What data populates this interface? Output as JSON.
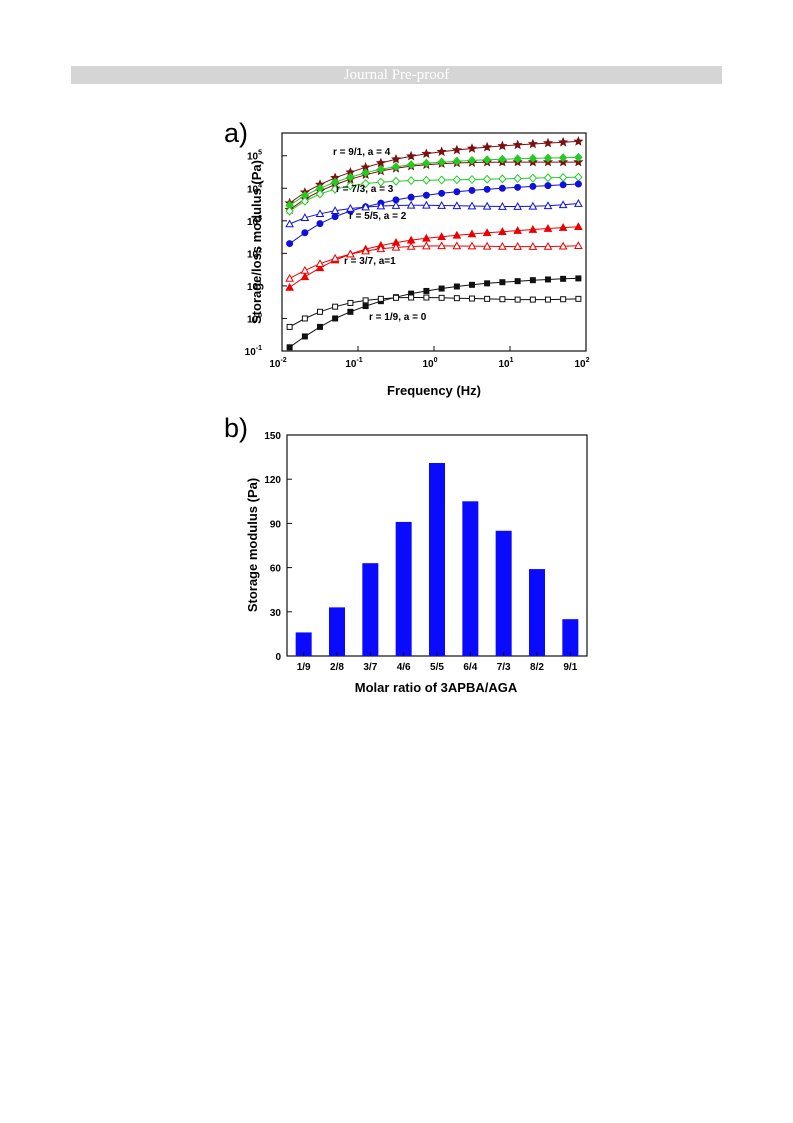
{
  "header": {
    "banner_text": "Journal Pre-proof"
  },
  "panels": {
    "a_label": "a)",
    "b_label": "b)"
  },
  "chart_data": [
    {
      "type": "scatter",
      "panel": "a",
      "xlabel": "Frequency (Hz)",
      "ylabel": "Storage/loss modulus (Pa)",
      "xscale": "log",
      "yscale": "log",
      "xlim": [
        0.01,
        100
      ],
      "ylim": [
        0.1,
        500000
      ],
      "xticks": [
        {
          "exp": "-2"
        },
        {
          "exp": "-1"
        },
        {
          "exp": "0"
        },
        {
          "exp": "1"
        },
        {
          "exp": "2"
        }
      ],
      "yticks": [
        {
          "exp": "-1"
        },
        {
          "exp": "0"
        },
        {
          "exp": "1"
        },
        {
          "exp": "2"
        },
        {
          "exp": "3"
        },
        {
          "exp": "4"
        },
        {
          "exp": "5"
        }
      ],
      "x": [
        0.0126,
        0.02,
        0.0316,
        0.05,
        0.0794,
        0.126,
        0.2,
        0.316,
        0.5,
        0.794,
        1.26,
        2,
        3.16,
        5,
        7.94,
        12.6,
        20,
        31.6,
        50,
        79.4
      ],
      "series": [
        {
          "marker": "star",
          "fill": true,
          "color": "#7a1010",
          "values": [
            3500,
            7500,
            13000,
            21000,
            31000,
            44000,
            60000,
            78000,
            97000,
            115000,
            133000,
            150000,
            167000,
            184000,
            200000,
            215000,
            230000,
            245000,
            260000,
            275000
          ]
        },
        {
          "marker": "star",
          "fill": true,
          "color": "#7a1010",
          "values": [
            2200,
            4700,
            8200,
            13000,
            19000,
            26000,
            34000,
            41000,
            48000,
            53000,
            57000,
            60000,
            62000,
            63000,
            63500,
            64000,
            64000,
            64000,
            64000,
            64000
          ]
        },
        {
          "marker": "diamond",
          "fill": true,
          "color": "#22cc22",
          "values": [
            3000,
            6000,
            10000,
            15500,
            22000,
            30000,
            38500,
            46000,
            53000,
            59000,
            64000,
            68000,
            72000,
            75000,
            78000,
            80500,
            83000,
            85000,
            87000,
            89000
          ]
        },
        {
          "marker": "diamond",
          "fill": false,
          "color": "#22cc22",
          "values": [
            2000,
            4000,
            6700,
            9400,
            12000,
            14000,
            15500,
            16500,
            17200,
            17700,
            18000,
            18300,
            18600,
            19000,
            19500,
            20000,
            20500,
            21000,
            21500,
            22000
          ]
        },
        {
          "marker": "circle",
          "fill": true,
          "color": "#1010dd",
          "values": [
            200,
            430,
            820,
            1350,
            2000,
            2700,
            3500,
            4400,
            5300,
            6100,
            7000,
            7800,
            8600,
            9300,
            10000,
            10700,
            11400,
            12100,
            12800,
            13500
          ]
        },
        {
          "marker": "triangle",
          "fill": false,
          "color": "#1010dd",
          "values": [
            800,
            1250,
            1650,
            2050,
            2400,
            2650,
            2850,
            2950,
            3000,
            3000,
            2950,
            2900,
            2850,
            2800,
            2750,
            2750,
            2800,
            2900,
            3100,
            3400
          ]
        },
        {
          "marker": "triangle",
          "fill": true,
          "color": "#ee0000",
          "values": [
            9,
            19,
            36,
            62,
            95,
            135,
            175,
            215,
            255,
            290,
            325,
            360,
            395,
            430,
            465,
            500,
            540,
            580,
            620,
            660
          ]
        },
        {
          "marker": "triangle",
          "fill": false,
          "color": "#ee0000",
          "values": [
            17,
            30,
            48,
            70,
            95,
            118,
            138,
            153,
            163,
            168,
            170,
            169,
            167,
            165,
            163,
            162,
            162,
            163,
            166,
            172
          ]
        },
        {
          "marker": "square",
          "fill": true,
          "color": "#111111",
          "values": [
            0.13,
            0.28,
            0.55,
            1.0,
            1.6,
            2.4,
            3.4,
            4.5,
            5.8,
            7.0,
            8.3,
            9.6,
            10.8,
            12.0,
            13.0,
            14.0,
            15.0,
            15.8,
            16.5,
            17.0
          ]
        },
        {
          "marker": "square",
          "fill": false,
          "color": "#111111",
          "values": [
            0.55,
            1.0,
            1.6,
            2.3,
            3.0,
            3.6,
            4.0,
            4.3,
            4.4,
            4.4,
            4.3,
            4.2,
            4.1,
            4.0,
            3.9,
            3.8,
            3.8,
            3.8,
            3.9,
            4.0
          ]
        }
      ],
      "annotations": [
        "r = 9/1, a = 4",
        "r = 7/3, a = 3",
        "r = 5/5, a = 2",
        "r = 3/7, a=1",
        "r = 1/9, a = 0"
      ]
    },
    {
      "type": "bar",
      "panel": "b",
      "categories": [
        "1/9",
        "2/8",
        "3/7",
        "4/6",
        "5/5",
        "6/4",
        "7/3",
        "8/2",
        "9/1"
      ],
      "values": [
        16,
        33,
        63,
        91,
        131,
        105,
        85,
        59,
        25
      ],
      "xlabel": "Molar ratio of 3APBA/AGA",
      "ylabel": "Storage modulus (Pa)",
      "ylim": [
        0,
        150
      ],
      "yticks": [
        "0",
        "30",
        "60",
        "90",
        "120",
        "150"
      ],
      "color": "#0a0aff"
    }
  ]
}
